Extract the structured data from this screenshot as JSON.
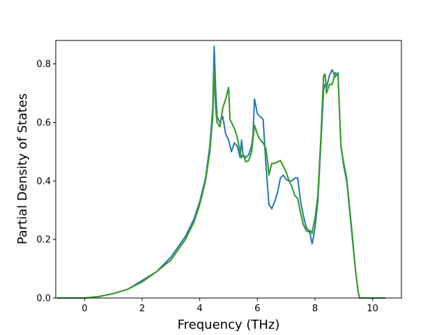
{
  "chart_data": {
    "type": "line",
    "title": "",
    "xlabel": "Frequency (THz)",
    "ylabel": "Partial Density of States",
    "xlim": [
      -1.0,
      11.0
    ],
    "ylim": [
      0.0,
      0.88
    ],
    "xticks": [
      0,
      2,
      4,
      6,
      8,
      10
    ],
    "yticks": [
      0.0,
      0.2,
      0.4,
      0.6,
      0.8
    ],
    "xtick_labels": [
      "0",
      "2",
      "4",
      "6",
      "8",
      "10"
    ],
    "ytick_labels": [
      "0.0",
      "0.2",
      "0.4",
      "0.6",
      "0.8"
    ],
    "grid": false,
    "legend": "none",
    "series": [
      {
        "color": "#1f77b4",
        "x": [
          -0.95,
          0.0,
          0.5,
          1.0,
          1.5,
          2.0,
          2.5,
          3.0,
          3.5,
          3.8,
          4.0,
          4.2,
          4.35,
          4.45,
          4.5,
          4.55,
          4.6,
          4.7,
          4.8,
          4.9,
          5.0,
          5.1,
          5.2,
          5.3,
          5.4,
          5.45,
          5.5,
          5.6,
          5.7,
          5.8,
          5.85,
          5.9,
          6.0,
          6.1,
          6.2,
          6.3,
          6.4,
          6.5,
          6.6,
          6.7,
          6.8,
          6.9,
          7.0,
          7.1,
          7.2,
          7.3,
          7.4,
          7.5,
          7.6,
          7.7,
          7.8,
          7.85,
          7.9,
          7.95,
          8.0,
          8.1,
          8.2,
          8.3,
          8.35,
          8.4,
          8.5,
          8.6,
          8.7,
          8.8,
          8.9,
          9.0,
          9.1,
          9.2,
          9.3,
          9.4,
          9.5,
          9.55,
          9.6,
          10.45
        ],
        "y": [
          0.0,
          0.0,
          0.005,
          0.015,
          0.03,
          0.06,
          0.09,
          0.14,
          0.21,
          0.27,
          0.33,
          0.41,
          0.52,
          0.65,
          0.86,
          0.72,
          0.62,
          0.6,
          0.62,
          0.56,
          0.54,
          0.5,
          0.53,
          0.52,
          0.48,
          0.54,
          0.49,
          0.48,
          0.49,
          0.52,
          0.56,
          0.68,
          0.63,
          0.62,
          0.61,
          0.45,
          0.32,
          0.305,
          0.33,
          0.36,
          0.41,
          0.42,
          0.405,
          0.4,
          0.4,
          0.41,
          0.41,
          0.33,
          0.28,
          0.24,
          0.23,
          0.21,
          0.185,
          0.21,
          0.24,
          0.33,
          0.52,
          0.71,
          0.73,
          0.72,
          0.76,
          0.78,
          0.755,
          0.77,
          0.52,
          0.45,
          0.4,
          0.3,
          0.2,
          0.1,
          0.02,
          0.0,
          0.0,
          0.0
        ]
      },
      {
        "color": "#ff7f0e",
        "x": [
          -0.95,
          0.0,
          0.5,
          1.0,
          1.5,
          2.0,
          2.5,
          3.0,
          3.5,
          3.8,
          4.0,
          4.2,
          4.35,
          4.45,
          4.5,
          4.55,
          4.6,
          4.7,
          4.8,
          4.9,
          5.0,
          5.05,
          5.1,
          5.2,
          5.3,
          5.4,
          5.45,
          5.5,
          5.6,
          5.7,
          5.8,
          5.9,
          6.0,
          6.1,
          6.2,
          6.3,
          6.35,
          6.4,
          6.5,
          6.6,
          6.7,
          6.8,
          6.9,
          7.0,
          7.1,
          7.2,
          7.3,
          7.4,
          7.5,
          7.6,
          7.7,
          7.8,
          7.85,
          7.9,
          7.95,
          8.0,
          8.1,
          8.2,
          8.3,
          8.35,
          8.4,
          8.5,
          8.6,
          8.7,
          8.8,
          8.9,
          9.0,
          9.1,
          9.2,
          9.3,
          9.4,
          9.5,
          9.55,
          9.6,
          10.45
        ],
        "y": [
          0.0,
          0.0,
          0.005,
          0.015,
          0.03,
          0.055,
          0.09,
          0.13,
          0.2,
          0.26,
          0.32,
          0.4,
          0.5,
          0.62,
          0.78,
          0.65,
          0.6,
          0.585,
          0.65,
          0.68,
          0.72,
          0.61,
          0.6,
          0.58,
          0.55,
          0.5,
          0.48,
          0.49,
          0.465,
          0.47,
          0.5,
          0.59,
          0.56,
          0.54,
          0.53,
          0.51,
          0.47,
          0.42,
          0.46,
          0.46,
          0.465,
          0.47,
          0.45,
          0.43,
          0.4,
          0.38,
          0.35,
          0.34,
          0.29,
          0.25,
          0.23,
          0.225,
          0.23,
          0.22,
          0.25,
          0.27,
          0.35,
          0.54,
          0.76,
          0.765,
          0.7,
          0.73,
          0.73,
          0.77,
          0.76,
          0.52,
          0.46,
          0.41,
          0.31,
          0.21,
          0.1,
          0.02,
          0.0,
          0.0,
          0.0
        ]
      },
      {
        "color": "#2ca02c",
        "x": [
          -0.95,
          0.0,
          0.5,
          1.0,
          1.5,
          2.0,
          2.5,
          3.0,
          3.5,
          3.8,
          4.0,
          4.2,
          4.35,
          4.45,
          4.5,
          4.55,
          4.6,
          4.7,
          4.8,
          4.9,
          5.0,
          5.05,
          5.1,
          5.2,
          5.3,
          5.4,
          5.45,
          5.5,
          5.6,
          5.7,
          5.8,
          5.9,
          6.0,
          6.1,
          6.2,
          6.3,
          6.35,
          6.4,
          6.5,
          6.6,
          6.7,
          6.8,
          6.9,
          7.0,
          7.1,
          7.2,
          7.3,
          7.4,
          7.5,
          7.6,
          7.7,
          7.8,
          7.85,
          7.9,
          7.95,
          8.0,
          8.1,
          8.2,
          8.3,
          8.35,
          8.4,
          8.5,
          8.6,
          8.7,
          8.8,
          8.9,
          9.0,
          9.1,
          9.2,
          9.3,
          9.4,
          9.5,
          9.55,
          9.6,
          10.45
        ],
        "y": [
          0.0,
          0.0,
          0.005,
          0.015,
          0.03,
          0.055,
          0.09,
          0.13,
          0.2,
          0.26,
          0.32,
          0.4,
          0.5,
          0.62,
          0.78,
          0.65,
          0.6,
          0.585,
          0.65,
          0.68,
          0.72,
          0.61,
          0.6,
          0.58,
          0.55,
          0.5,
          0.48,
          0.49,
          0.465,
          0.47,
          0.5,
          0.59,
          0.56,
          0.54,
          0.53,
          0.51,
          0.47,
          0.42,
          0.46,
          0.46,
          0.465,
          0.47,
          0.45,
          0.43,
          0.4,
          0.38,
          0.35,
          0.34,
          0.29,
          0.25,
          0.23,
          0.225,
          0.23,
          0.22,
          0.25,
          0.27,
          0.35,
          0.54,
          0.76,
          0.765,
          0.7,
          0.73,
          0.73,
          0.77,
          0.76,
          0.52,
          0.46,
          0.41,
          0.31,
          0.21,
          0.1,
          0.02,
          0.0,
          0.0,
          0.0
        ]
      }
    ]
  }
}
